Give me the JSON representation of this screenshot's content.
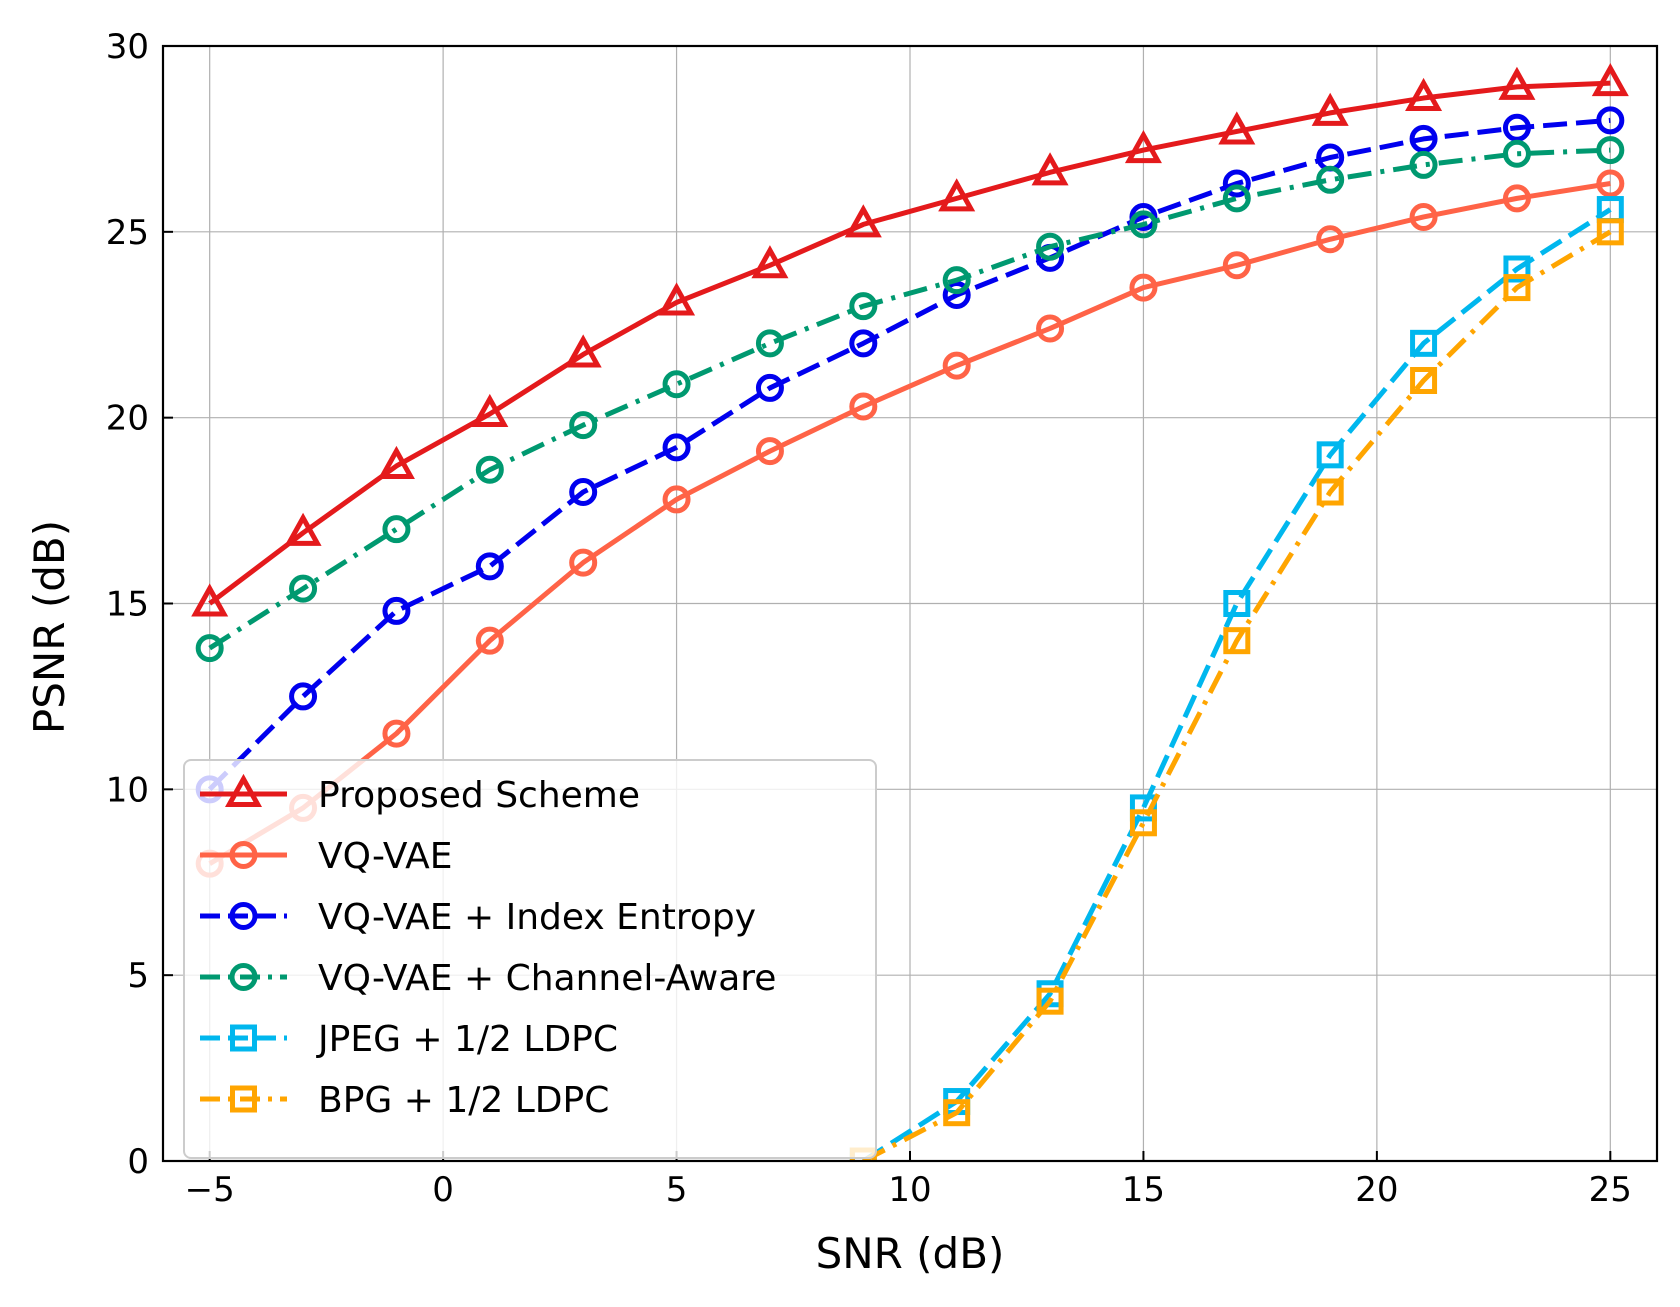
{
  "chart_data": {
    "type": "line",
    "title": "",
    "xlabel": "SNR (dB)",
    "ylabel": "PSNR (dB)",
    "xlim": [
      -6,
      26
    ],
    "ylim": [
      0,
      30
    ],
    "xticks": [
      -5,
      0,
      5,
      10,
      15,
      20,
      25
    ],
    "xtick_labels": [
      "−5",
      "0",
      "5",
      "10",
      "15",
      "20",
      "25"
    ],
    "yticks": [
      0,
      5,
      10,
      15,
      20,
      25,
      30
    ],
    "ytick_labels": [
      "0",
      "5",
      "10",
      "15",
      "20",
      "25",
      "30"
    ],
    "grid": true,
    "legend_position": "lower-left",
    "series": [
      {
        "name": "Proposed Scheme",
        "color": "#e41a1c",
        "dash": "solid",
        "marker": "triangle",
        "x": [
          -5,
          -3,
          -1,
          1,
          3,
          5,
          7,
          9,
          11,
          13,
          15,
          17,
          19,
          21,
          23,
          25
        ],
        "y": [
          15.0,
          16.9,
          18.7,
          20.1,
          21.7,
          23.1,
          24.1,
          25.2,
          25.9,
          26.6,
          27.2,
          27.7,
          28.2,
          28.6,
          28.9,
          29.0
        ]
      },
      {
        "name": "VQ-VAE",
        "color": "#ff6347",
        "dash": "solid",
        "marker": "circle",
        "x": [
          -5,
          -3,
          -1,
          1,
          3,
          5,
          7,
          9,
          11,
          13,
          15,
          17,
          19,
          21,
          23,
          25
        ],
        "y": [
          8.0,
          9.5,
          11.5,
          14.0,
          16.1,
          17.8,
          19.1,
          20.3,
          21.4,
          22.4,
          23.5,
          24.1,
          24.8,
          25.4,
          25.9,
          26.3
        ]
      },
      {
        "name": "VQ-VAE + Index Entropy",
        "color": "#0000ee",
        "dash": "dashed",
        "marker": "circle",
        "x": [
          -5,
          -3,
          -1,
          1,
          3,
          5,
          7,
          9,
          11,
          13,
          15,
          17,
          19,
          21,
          23,
          25
        ],
        "y": [
          10.0,
          12.5,
          14.8,
          16.0,
          18.0,
          19.2,
          20.8,
          22.0,
          23.3,
          24.3,
          25.4,
          26.3,
          27.0,
          27.5,
          27.8,
          28.0
        ]
      },
      {
        "name": "VQ-VAE + Channel-Aware",
        "color": "#009970",
        "dash": "dashdot",
        "marker": "circle",
        "x": [
          -5,
          -3,
          -1,
          1,
          3,
          5,
          7,
          9,
          11,
          13,
          15,
          17,
          19,
          21,
          23,
          25
        ],
        "y": [
          13.8,
          15.4,
          17.0,
          18.6,
          19.8,
          20.9,
          22.0,
          23.0,
          23.7,
          24.6,
          25.2,
          25.9,
          26.4,
          26.8,
          27.1,
          27.2
        ]
      },
      {
        "name": "JPEG + 1/2 LDPC",
        "color": "#00b7ee",
        "dash": "dashed",
        "marker": "square",
        "x": [
          9,
          11,
          13,
          15,
          17,
          19,
          21,
          23,
          25
        ],
        "y": [
          0.0,
          1.6,
          4.5,
          9.5,
          15.0,
          19.0,
          22.0,
          24.0,
          25.6
        ]
      },
      {
        "name": "BPG + 1/2 LDPC",
        "color": "#ffa500",
        "dash": "dashdot",
        "marker": "square",
        "x": [
          9,
          11,
          13,
          15,
          17,
          19,
          21,
          23,
          25
        ],
        "y": [
          0.0,
          1.3,
          4.3,
          9.1,
          14.0,
          18.0,
          21.0,
          23.5,
          25.0
        ]
      }
    ]
  }
}
